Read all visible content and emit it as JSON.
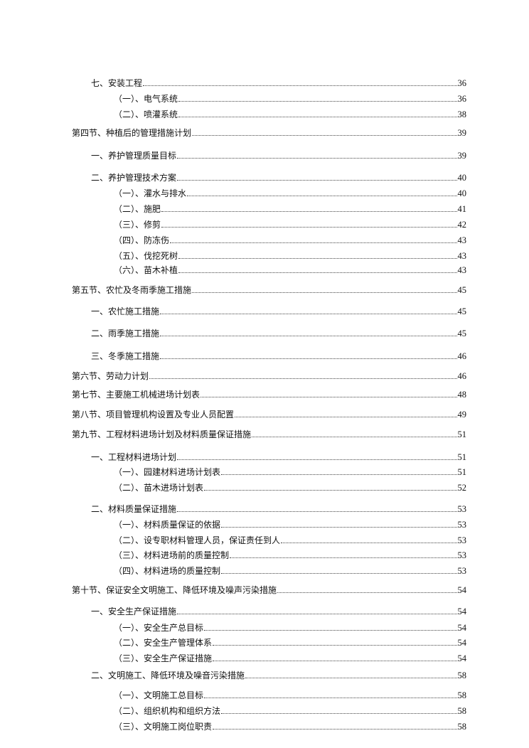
{
  "toc": [
    {
      "level": 1,
      "title": "七、安装工程",
      "page": "36"
    },
    {
      "level": 2,
      "title": "（一）、电气系统",
      "page": "36"
    },
    {
      "level": 2,
      "title": "（二）、喷灌系统",
      "page": "38"
    },
    {
      "level": 0,
      "title": "第四节、种植后的管理措施计划",
      "page": "39"
    },
    {
      "level": 1,
      "title": "一、养护管理质量目标",
      "page": "39"
    },
    {
      "level": 1,
      "title": "二、养护管理技术方案",
      "page": "40"
    },
    {
      "level": 2,
      "title": "（一）、灌水与排水",
      "page": "40"
    },
    {
      "level": 2,
      "title": "（二）、施肥",
      "page": "41"
    },
    {
      "level": 2,
      "title": "（三）、修剪",
      "page": "42"
    },
    {
      "level": 2,
      "title": "（四）、防冻伤",
      "page": "43"
    },
    {
      "level": 2,
      "title": "（五）、伐挖死树",
      "page": "43"
    },
    {
      "level": 2,
      "title": "（六）、苗木补植",
      "page": "43"
    },
    {
      "level": 0,
      "title": "第五节、农忙及冬雨季施工措施",
      "page": "45"
    },
    {
      "level": 1,
      "title": "一、农忙施工措施",
      "page": "45"
    },
    {
      "level": 1,
      "title": "二、雨季施工措施",
      "page": "45"
    },
    {
      "level": 1,
      "title": "三、冬季施工措施",
      "page": "46"
    },
    {
      "level": 0,
      "title": "第六节、劳动力计划",
      "page": "46"
    },
    {
      "level": 0,
      "title": "第七节、主要施工机械进场计划表",
      "page": "48"
    },
    {
      "level": 0,
      "title": "第八节、项目管理机构设置及专业人员配置",
      "page": "49"
    },
    {
      "level": 0,
      "title": "第九节、工程材料进场计划及材料质量保证措施",
      "page": "51"
    },
    {
      "level": 1,
      "title": "一、工程材料进场计划",
      "page": "51"
    },
    {
      "level": 2,
      "title": "（一）、园建材料进场计划表",
      "page": "51"
    },
    {
      "level": 2,
      "title": "（二）、苗木进场计划表",
      "page": "52"
    },
    {
      "level": 1,
      "title": "二、材料质量保证措施",
      "page": "53"
    },
    {
      "level": 2,
      "title": "（一）、材料质量保证的依据",
      "page": "53"
    },
    {
      "level": 2,
      "title": "（二）、设专职材料管理人员，保证责任到人",
      "page": "53"
    },
    {
      "level": 2,
      "title": "（三）、材料进场前的质量控制",
      "page": "53"
    },
    {
      "level": 2,
      "title": "（四）、材料进场的质量控制",
      "page": "53"
    },
    {
      "level": 0,
      "title": "第十节、保证安全文明施工、降低环境及噪声污染措施",
      "page": "54"
    },
    {
      "level": 1,
      "title": "一、安全生产保证措施",
      "page": "54"
    },
    {
      "level": 2,
      "title": "（一）、安全生产总目标",
      "page": "54"
    },
    {
      "level": 2,
      "title": "（二）、安全生产管理体系",
      "page": "54"
    },
    {
      "level": 2,
      "title": "（三）、安全生产保证措施",
      "page": "54"
    },
    {
      "level": 1,
      "title": "二、文明施工、降低环境及噪音污染措施",
      "page": "58"
    },
    {
      "level": 2,
      "title": "（一）、文明施工总目标",
      "page": "58"
    },
    {
      "level": 2,
      "title": "（二）、组织机构和组织方法",
      "page": "58"
    },
    {
      "level": 2,
      "title": "（三）、文明施工岗位职责",
      "page": "58"
    }
  ]
}
